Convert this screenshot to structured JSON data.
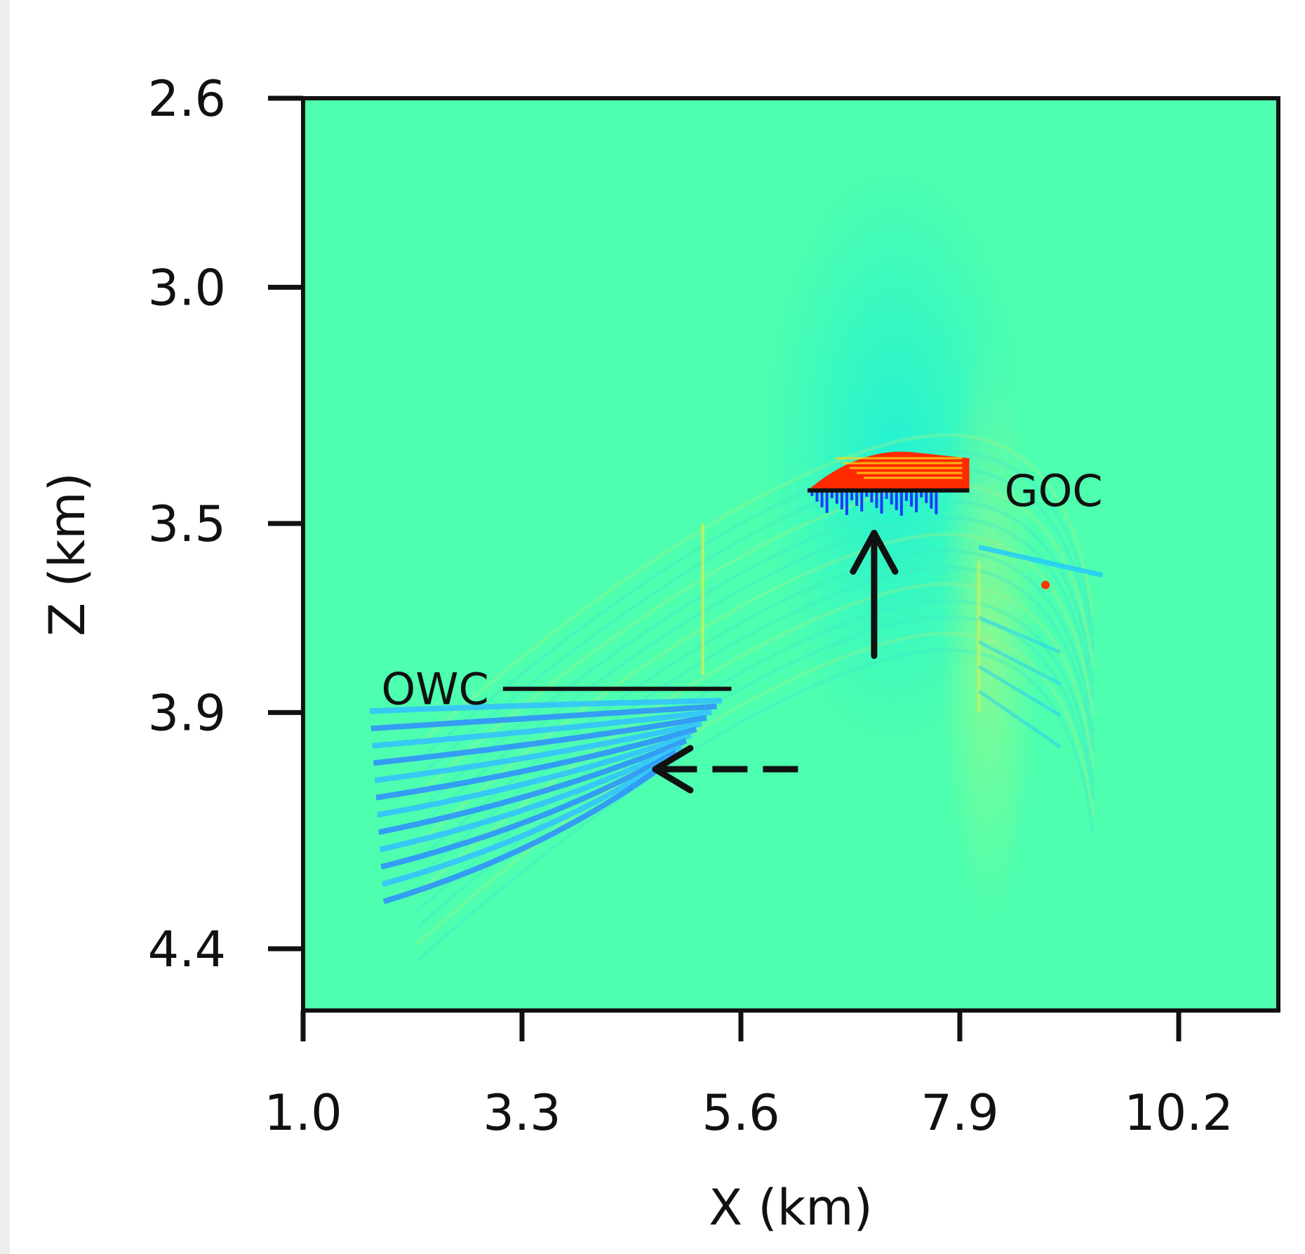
{
  "chart_data": {
    "type": "heatmap",
    "title": "",
    "xlabel": "X (km)",
    "ylabel": "Z (km)",
    "x_ticks": [
      1.0,
      3.3,
      5.6,
      7.9,
      10.2
    ],
    "x_tick_labels": [
      "1.0",
      "3.3",
      "5.6",
      "7.9",
      "10.2"
    ],
    "y_ticks": [
      2.6,
      3.0,
      3.5,
      3.9,
      4.4
    ],
    "y_tick_labels": [
      "2.6",
      "3.0",
      "3.5",
      "3.9",
      "4.4"
    ],
    "xlim": [
      1.0,
      11.2
    ],
    "ylim": [
      2.6,
      4.75
    ],
    "y_inverted": true,
    "grid": false,
    "colormap": "jet",
    "background_value_color": "#4dffaf",
    "annotations": [
      {
        "label": "GOC",
        "kind": "contact-line",
        "x0": 6.3,
        "x1": 8.0,
        "z": 3.43
      },
      {
        "label": "OWC",
        "kind": "contact-line",
        "x0": 3.1,
        "x1": 5.5,
        "z": 3.85
      },
      {
        "label": "",
        "kind": "arrow-solid",
        "from": [
          7.0,
          3.78
        ],
        "to": [
          7.0,
          3.52
        ]
      },
      {
        "label": "",
        "kind": "arrow-dashed",
        "from": [
          6.2,
          4.02
        ],
        "to": [
          4.7,
          4.02
        ]
      }
    ],
    "anomalies": [
      {
        "name": "gas cap",
        "polarity": "positive",
        "color": "#ff2a00",
        "x_range": [
          6.3,
          8.0
        ],
        "z_range": [
          3.35,
          3.43
        ]
      },
      {
        "name": "below GOC",
        "polarity": "negative",
        "color": "#1a3cff",
        "x_range": [
          6.2,
          7.8
        ],
        "z_range": [
          3.43,
          3.48
        ]
      },
      {
        "name": "oil-water zone",
        "polarity": "negative",
        "color": "#2aa8ff",
        "x_range": [
          1.7,
          5.4
        ],
        "z_range": [
          3.86,
          4.3
        ]
      },
      {
        "name": "right flank",
        "polarity": "negative",
        "color": "#20c8ff",
        "x_range": [
          8.1,
          9.4
        ],
        "z_range": [
          3.55,
          4.0
        ]
      }
    ]
  }
}
